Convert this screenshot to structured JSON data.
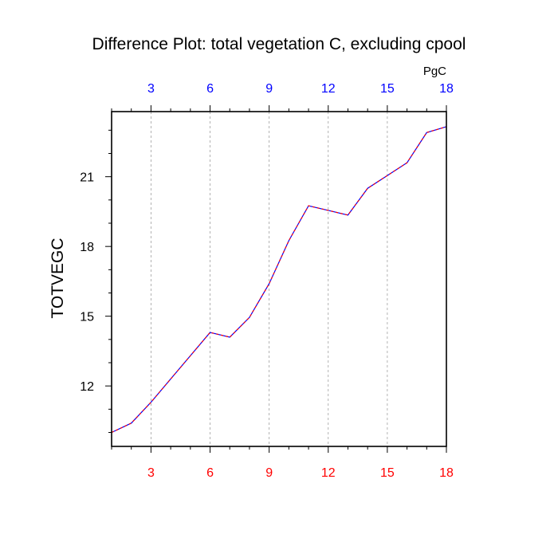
{
  "chart_data": {
    "type": "line",
    "title": "Difference Plot: total vegetation C, excluding cpool",
    "ylabel": "TOTVEGC",
    "top_axis_units": "PgC",
    "xlim": [
      1,
      18
    ],
    "ylim": [
      9.4,
      23.8
    ],
    "x_ticks": [
      3,
      6,
      9,
      12,
      15,
      18
    ],
    "x_tick_labels": [
      "3",
      "6",
      "9",
      "12",
      "15",
      "18"
    ],
    "y_ticks": [
      12,
      15,
      18,
      21
    ],
    "y_tick_labels": [
      "12",
      "15",
      "18",
      "21"
    ],
    "grid": "vertical dashed at major x ticks",
    "series": [
      {
        "color": "#0000ff",
        "values_x": [
          1,
          2,
          3,
          4,
          5,
          6,
          7,
          8,
          9,
          10,
          11,
          12,
          13,
          14,
          15,
          16,
          17,
          18
        ],
        "values_y": [
          10.0,
          10.4,
          11.3,
          12.3,
          13.3,
          14.3,
          14.1,
          14.95,
          16.4,
          18.25,
          19.75,
          19.55,
          19.35,
          20.5,
          21.05,
          21.6,
          22.9,
          23.15
        ]
      },
      {
        "color": "#ff0000",
        "values_x": [
          1,
          2,
          3,
          4,
          5,
          6,
          7,
          8,
          9,
          10,
          11,
          12,
          13,
          14,
          15,
          16,
          17,
          18
        ],
        "values_y": [
          10.0,
          10.4,
          11.3,
          12.3,
          13.3,
          14.3,
          14.1,
          14.95,
          16.4,
          18.25,
          19.75,
          19.55,
          19.35,
          20.5,
          21.05,
          21.6,
          22.9,
          23.15
        ]
      }
    ],
    "colors": {
      "top_tick_labels": "#0000ff",
      "bottom_tick_labels": "#ff0000",
      "axes": "#000000",
      "grid": "#a0a0a0"
    }
  }
}
